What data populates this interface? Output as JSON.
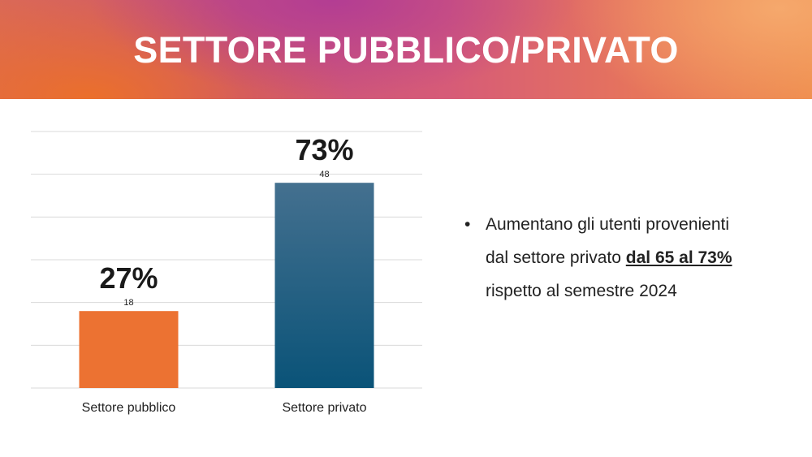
{
  "slide": {
    "title": "SETTORE PUBBLICO/PRIVATO",
    "colors": {
      "banner_accent": "#c8527a",
      "banner_orange": "#ee8a4a"
    }
  },
  "bullet": {
    "marker": "•",
    "line1": "Aumentano gli utenti provenienti",
    "line2_pre": "dal settore privato ",
    "line2_emph": "dal 65 al 73%",
    "line3": "rispetto al semestre 2024"
  },
  "chart_data": {
    "type": "bar",
    "categories": [
      "Settore pubblico",
      "Settore privato"
    ],
    "values": [
      18,
      48
    ],
    "data_labels": [
      "18",
      "48"
    ],
    "percent_labels": [
      "27%",
      "73%"
    ],
    "bar_colors": [
      "#ec7232",
      "#0e5b82"
    ],
    "ylim": [
      0,
      60
    ],
    "grid": true,
    "title": "",
    "xlabel": "",
    "ylabel": ""
  }
}
